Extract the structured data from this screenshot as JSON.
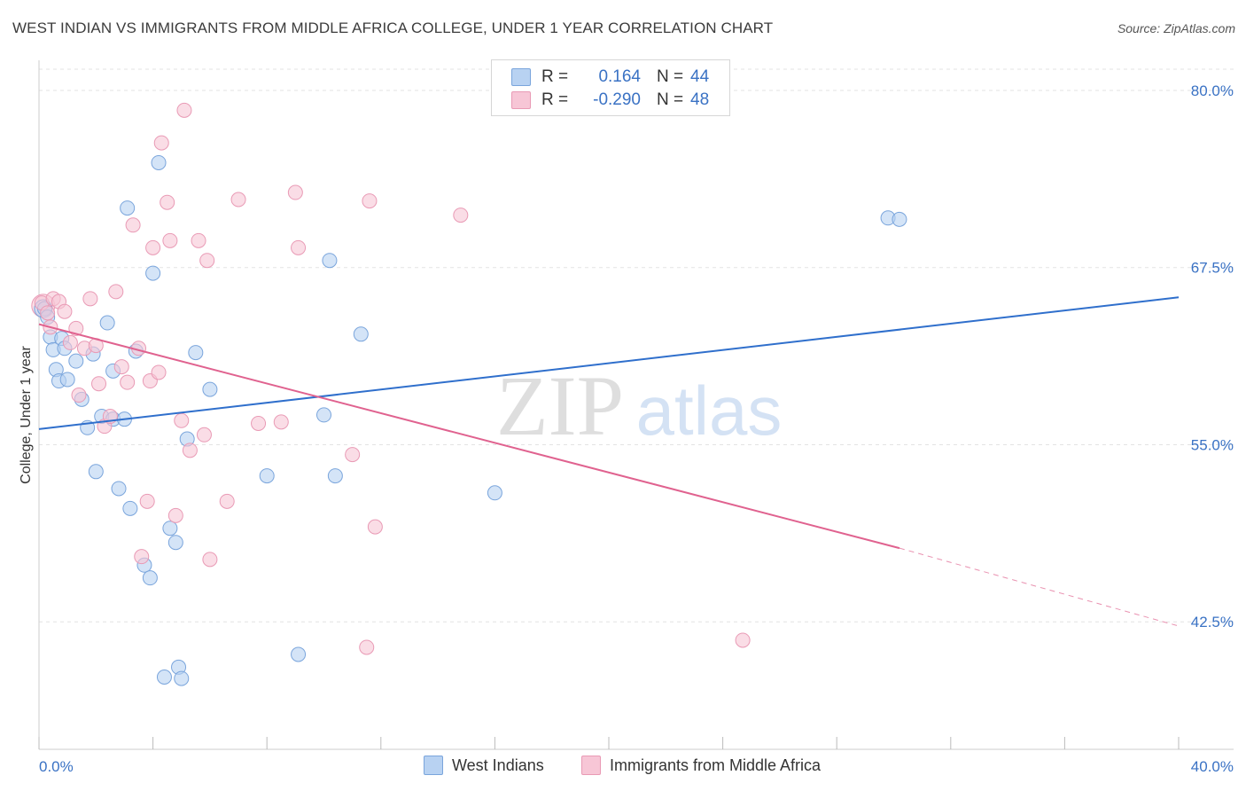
{
  "title": "WEST INDIAN VS IMMIGRANTS FROM MIDDLE AFRICA COLLEGE, UNDER 1 YEAR CORRELATION CHART",
  "source": "Source: ZipAtlas.com",
  "watermark": {
    "zip": "ZIP",
    "atlas": "atlas"
  },
  "legend_top": [
    {
      "r_label": "R =",
      "r_value": "0.164",
      "n_label": "N =",
      "n_value": "44"
    },
    {
      "r_label": "R =",
      "r_value": "-0.290",
      "n_label": "N =",
      "n_value": "48"
    }
  ],
  "legend_bottom": [
    "West Indians",
    "Immigrants from Middle Africa"
  ],
  "colors": {
    "blue_fill": "#b8d2f2",
    "blue_stroke": "#7aa5dc",
    "blue_line": "#2f6fcc",
    "pink_fill": "#f7c6d6",
    "pink_stroke": "#e99ab5",
    "pink_line": "#e0628f",
    "tick_text": "#3a72c4",
    "grid": "#e3e3e3"
  },
  "chart_data": {
    "type": "scatter",
    "title": "WEST INDIAN VS IMMIGRANTS FROM MIDDLE AFRICA COLLEGE, UNDER 1 YEAR CORRELATION CHART",
    "xlabel": "",
    "ylabel": "College, Under 1 year",
    "xlim": [
      0,
      40
    ],
    "ylim": [
      33.5,
      81.5
    ],
    "x_tick_labels": [
      "0.0%",
      "40.0%"
    ],
    "y_ticks": [
      42.5,
      55.0,
      67.5,
      80.0
    ],
    "y_tick_labels": [
      "42.5%",
      "55.0%",
      "67.5%",
      "80.0%"
    ],
    "grid": true,
    "legend_position": "top-center",
    "series": [
      {
        "name": "West Indians",
        "r": 0.164,
        "n": 44,
        "trend": {
          "x": [
            0,
            40
          ],
          "y": [
            56.1,
            65.4
          ]
        },
        "points": [
          [
            0.2,
            64.6
          ],
          [
            0.3,
            64.0
          ],
          [
            0.4,
            62.6
          ],
          [
            0.5,
            61.7
          ],
          [
            0.6,
            60.3
          ],
          [
            0.7,
            59.5
          ],
          [
            0.8,
            62.5
          ],
          [
            0.9,
            61.8
          ],
          [
            1.0,
            59.6
          ],
          [
            1.3,
            60.9
          ],
          [
            1.5,
            58.2
          ],
          [
            1.7,
            56.2
          ],
          [
            1.9,
            61.4
          ],
          [
            2.0,
            53.1
          ],
          [
            2.2,
            57.0
          ],
          [
            2.4,
            63.6
          ],
          [
            2.6,
            56.8
          ],
          [
            2.6,
            60.2
          ],
          [
            2.8,
            51.9
          ],
          [
            3.0,
            56.8
          ],
          [
            3.1,
            71.7
          ],
          [
            3.2,
            50.5
          ],
          [
            3.4,
            61.6
          ],
          [
            3.7,
            46.5
          ],
          [
            3.9,
            45.6
          ],
          [
            4.0,
            67.1
          ],
          [
            4.2,
            74.9
          ],
          [
            4.4,
            38.6
          ],
          [
            4.6,
            49.1
          ],
          [
            4.8,
            48.1
          ],
          [
            4.9,
            39.3
          ],
          [
            5.0,
            38.5
          ],
          [
            5.2,
            55.4
          ],
          [
            5.5,
            61.5
          ],
          [
            6.0,
            58.9
          ],
          [
            8.0,
            52.8
          ],
          [
            9.1,
            40.2
          ],
          [
            10.0,
            57.1
          ],
          [
            10.2,
            68.0
          ],
          [
            10.4,
            52.8
          ],
          [
            11.3,
            62.8
          ],
          [
            16.0,
            51.6
          ],
          [
            29.8,
            71.0
          ],
          [
            30.2,
            70.9
          ]
        ]
      },
      {
        "name": "Immigrants from Middle Africa",
        "r": -0.29,
        "n": 48,
        "trend": {
          "x": [
            0,
            30.2
          ],
          "y": [
            63.5,
            47.7
          ]
        },
        "trend_dashed": {
          "x": [
            30.2,
            40
          ],
          "y": [
            47.7,
            42.2
          ]
        },
        "points": [
          [
            0.1,
            65.0
          ],
          [
            0.3,
            64.3
          ],
          [
            0.4,
            63.3
          ],
          [
            0.5,
            65.3
          ],
          [
            0.7,
            65.1
          ],
          [
            0.9,
            64.4
          ],
          [
            1.1,
            62.2
          ],
          [
            1.3,
            63.2
          ],
          [
            1.4,
            58.5
          ],
          [
            1.6,
            61.8
          ],
          [
            1.8,
            65.3
          ],
          [
            2.0,
            62.0
          ],
          [
            2.1,
            59.3
          ],
          [
            2.3,
            56.3
          ],
          [
            2.5,
            57.0
          ],
          [
            2.7,
            65.8
          ],
          [
            2.9,
            60.5
          ],
          [
            3.1,
            59.4
          ],
          [
            3.3,
            70.5
          ],
          [
            3.5,
            61.8
          ],
          [
            3.6,
            47.1
          ],
          [
            3.8,
            51.0
          ],
          [
            3.9,
            59.5
          ],
          [
            4.0,
            68.9
          ],
          [
            4.2,
            60.1
          ],
          [
            4.3,
            76.3
          ],
          [
            4.5,
            72.1
          ],
          [
            4.6,
            69.4
          ],
          [
            4.8,
            50.0
          ],
          [
            5.0,
            56.7
          ],
          [
            5.1,
            78.6
          ],
          [
            5.3,
            54.6
          ],
          [
            5.6,
            69.4
          ],
          [
            5.8,
            55.7
          ],
          [
            5.9,
            68.0
          ],
          [
            6.0,
            46.9
          ],
          [
            6.6,
            51.0
          ],
          [
            7.0,
            72.3
          ],
          [
            7.7,
            56.5
          ],
          [
            8.5,
            56.6
          ],
          [
            9.0,
            72.8
          ],
          [
            9.1,
            68.9
          ],
          [
            11.0,
            54.3
          ],
          [
            11.5,
            40.7
          ],
          [
            11.6,
            72.2
          ],
          [
            11.8,
            49.2
          ],
          [
            14.8,
            71.2
          ],
          [
            24.7,
            41.2
          ]
        ]
      }
    ]
  }
}
